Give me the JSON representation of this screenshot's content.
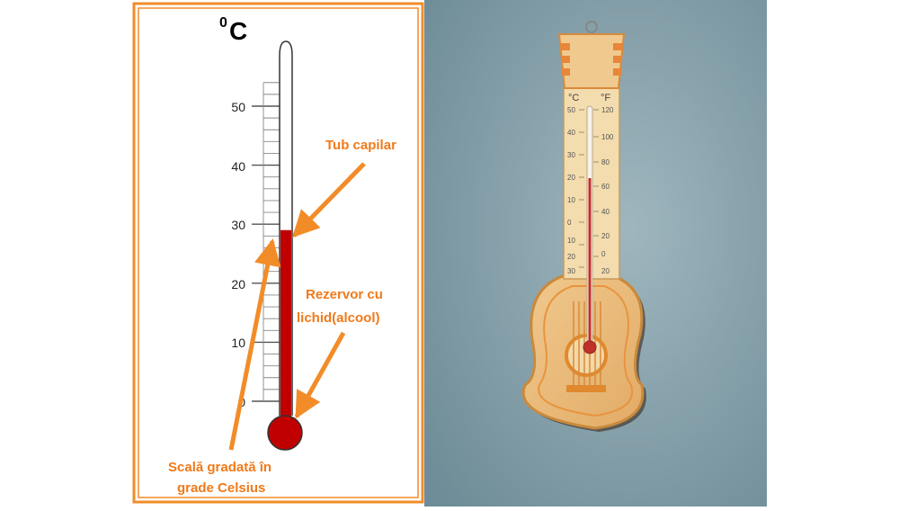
{
  "diagram": {
    "unit_label": "0C",
    "unit_superscript": "0",
    "unit_letter": "C",
    "scale_labels": [
      "50",
      "40",
      "30",
      "20",
      "10",
      "0"
    ],
    "scale_values": [
      50,
      40,
      30,
      20,
      10,
      0
    ],
    "liquid_level_celsius": 29,
    "callouts": {
      "capillary_tube": "Tub capilar",
      "reservoir_line1": "Rezervor cu",
      "reservoir_line2": "lichid(alcool)",
      "scale_line1": "Scală gradată în",
      "scale_line2": "grade Celsius"
    },
    "colors": {
      "frame": "#f28c28",
      "liquid": "#c00000",
      "callout_text": "#f07a1a",
      "arrow": "#f28c28"
    }
  },
  "photo": {
    "scale_left_unit": "°C",
    "scale_right_unit": "°F",
    "celsius_ticks": [
      "50",
      "40",
      "30",
      "20",
      "10",
      "0",
      "10",
      "20",
      "30"
    ],
    "fahrenheit_ticks": [
      "120",
      "100",
      "80",
      "60",
      "40",
      "20",
      "0",
      "20"
    ]
  }
}
